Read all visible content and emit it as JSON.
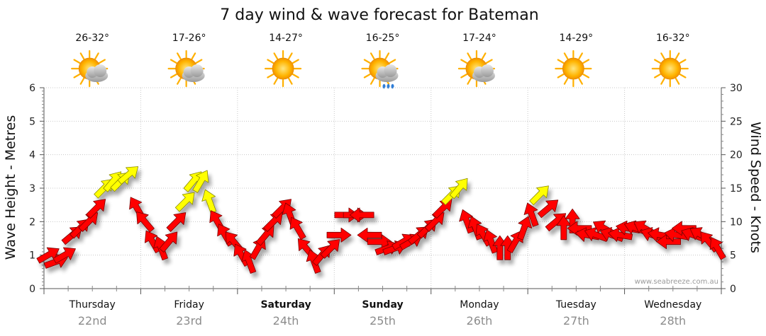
{
  "chart_data": {
    "type": "line",
    "title": "7 day wind & wave forecast for Bateman",
    "ylabel_left": "Wave Height - Metres",
    "ylabel_right": "Wind Speed - Knots",
    "ylim_left": [
      0,
      6
    ],
    "ylim_right": [
      0,
      30
    ],
    "yticks_left": [
      "0",
      "1",
      "2",
      "3",
      "4",
      "5",
      "6"
    ],
    "yticks_right": [
      "0",
      "5",
      "10",
      "15",
      "20",
      "25",
      "30"
    ],
    "watermark": "www.seabreeze.com.au",
    "grid": true,
    "days": [
      {
        "name": "Thursday",
        "date": "22nd",
        "temp": "26-32°",
        "weather_icon": "partly-cloudy-icon",
        "bold": false
      },
      {
        "name": "Friday",
        "date": "23rd",
        "temp": "17-26°",
        "weather_icon": "partly-cloudy-icon",
        "bold": false
      },
      {
        "name": "Saturday",
        "date": "24th",
        "temp": "14-27°",
        "weather_icon": "sunny-icon",
        "bold": true
      },
      {
        "name": "Sunday",
        "date": "25th",
        "temp": "16-25°",
        "weather_icon": "showers-icon",
        "bold": true
      },
      {
        "name": "Monday",
        "date": "26th",
        "temp": "17-24°",
        "weather_icon": "partly-cloudy-icon",
        "bold": false
      },
      {
        "name": "Tuesday",
        "date": "27th",
        "temp": "14-29°",
        "weather_icon": "sunny-icon",
        "bold": false
      },
      {
        "name": "Wednesday",
        "date": "28th",
        "temp": "16-32°",
        "weather_icon": "sunny-icon",
        "bold": false
      }
    ],
    "wind_series": {
      "name": "Wind",
      "units": "knots",
      "x_days": [
        0.0,
        0.08,
        0.17,
        0.25,
        0.33,
        0.42,
        0.5,
        0.58,
        0.67,
        0.75,
        0.83,
        0.92,
        1.0,
        1.08,
        1.17,
        1.25,
        1.33,
        1.42,
        1.5,
        1.58,
        1.67,
        1.75,
        1.83,
        1.92,
        2.0,
        2.08,
        2.17,
        2.25,
        2.33,
        2.42,
        2.5,
        2.58,
        2.67,
        2.75,
        2.83,
        2.92,
        3.0,
        3.08,
        3.17,
        3.25,
        3.33,
        3.42,
        3.5,
        3.58,
        3.67,
        3.75,
        3.83,
        3.92,
        4.0,
        4.08,
        4.17,
        4.25,
        4.33,
        4.42,
        4.5,
        4.58,
        4.67,
        4.75,
        4.83,
        4.92,
        5.0,
        5.08,
        5.17,
        5.25,
        5.33,
        5.42,
        5.5,
        5.58,
        5.67,
        5.75,
        5.83,
        5.92,
        6.0,
        6.08,
        6.17,
        6.25,
        6.33,
        6.42,
        6.5,
        6.58,
        6.67,
        6.75,
        6.83,
        6.92
      ],
      "speed_kn": [
        5,
        4,
        5,
        8,
        9,
        10,
        12,
        15,
        16,
        16,
        17,
        12,
        10,
        7,
        6,
        7,
        10,
        13,
        16,
        16,
        13,
        10,
        8,
        7,
        5,
        4,
        6,
        8,
        10,
        12,
        11,
        9,
        6,
        4,
        5,
        6,
        8,
        11,
        11,
        11,
        8,
        7,
        6,
        6,
        7,
        7,
        8,
        9,
        10,
        12,
        14,
        15,
        10,
        9,
        8,
        7,
        6,
        6,
        7,
        9,
        11,
        14,
        12,
        10,
        9,
        10,
        9,
        8,
        8,
        9,
        8,
        8,
        9,
        9,
        9,
        8,
        8,
        7,
        8,
        9,
        8,
        8,
        7,
        6
      ],
      "direction_deg": [
        240,
        250,
        240,
        230,
        225,
        225,
        225,
        225,
        220,
        225,
        230,
        150,
        140,
        150,
        160,
        220,
        225,
        225,
        220,
        210,
        160,
        150,
        150,
        140,
        150,
        160,
        210,
        220,
        225,
        225,
        160,
        150,
        140,
        160,
        220,
        225,
        270,
        270,
        270,
        90,
        90,
        270,
        250,
        250,
        240,
        240,
        230,
        225,
        225,
        225,
        225,
        220,
        160,
        160,
        150,
        160,
        180,
        180,
        210,
        200,
        160,
        225,
        230,
        230,
        180,
        180,
        90,
        100,
        110,
        120,
        110,
        100,
        100,
        110,
        120,
        110,
        100,
        90,
        100,
        90,
        110,
        120,
        140,
        150
      ],
      "high_wind_over_kn": 13
    }
  }
}
